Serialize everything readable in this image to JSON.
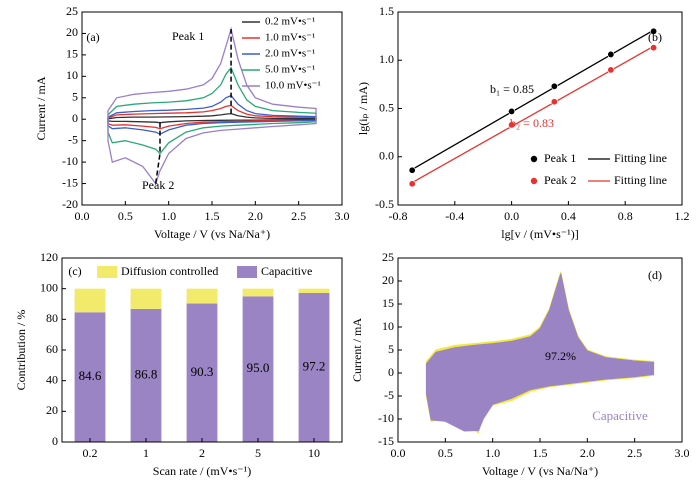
{
  "chart_data": [
    {
      "type": "line",
      "panel": "(a)",
      "x_label": "Voltage / V (vs Na/Na⁺)",
      "y_label": "Current / mA",
      "annotations": [
        {
          "text": "Peak 1"
        },
        {
          "text": "Peak 2"
        }
      ],
      "x": [
        0.3,
        0.4,
        0.6,
        0.8,
        1.0,
        1.2,
        1.4,
        1.5,
        1.6,
        1.66,
        1.72,
        1.8,
        1.9,
        2.0,
        2.2,
        2.5,
        2.7,
        2.7,
        2.5,
        2.2,
        2.0,
        1.8,
        1.6,
        1.4,
        1.2,
        1.0,
        0.9,
        0.85,
        0.7,
        0.5,
        0.35,
        0.3,
        0.3
      ],
      "series": [
        {
          "name": "0.2 mV•s⁻¹",
          "color": "#333333",
          "values": [
            0.1,
            0.4,
            0.5,
            0.5,
            0.55,
            0.6,
            0.7,
            0.8,
            1,
            1.2,
            1.3,
            0.8,
            0.5,
            0.3,
            0.2,
            0.2,
            0.2,
            -0.1,
            -0.1,
            -0.15,
            -0.2,
            -0.2,
            -0.25,
            -0.3,
            -0.4,
            -0.6,
            -0.8,
            -0.7,
            -0.6,
            -0.5,
            -0.5,
            -0.4,
            0.1
          ]
        },
        {
          "name": "1.0 mV•s⁻¹",
          "color": "#e8322f",
          "values": [
            0.3,
            1,
            1.2,
            1.3,
            1.4,
            1.5,
            1.7,
            2,
            2.5,
            3,
            3.2,
            2,
            1.2,
            0.8,
            0.6,
            0.5,
            0.4,
            -0.2,
            -0.3,
            -0.35,
            -0.4,
            -0.5,
            -0.6,
            -0.7,
            -1,
            -1.6,
            -2.2,
            -1.9,
            -1.6,
            -1.3,
            -1.4,
            -1,
            0.3
          ]
        },
        {
          "name": "2.0 mV•s⁻¹",
          "color": "#3a5fcd",
          "values": [
            0.5,
            1.5,
            1.8,
            2,
            2.1,
            2.3,
            2.6,
            3,
            4,
            5,
            5.5,
            3.5,
            2,
            1.3,
            0.9,
            0.7,
            0.6,
            -0.3,
            -0.4,
            -0.5,
            -0.6,
            -0.7,
            -0.8,
            -1,
            -1.4,
            -2.5,
            -3.5,
            -3,
            -2.5,
            -2,
            -2.2,
            -1.5,
            0.5
          ]
        },
        {
          "name": "5.0 mV•s⁻¹",
          "color": "#2aa876",
          "values": [
            1,
            3,
            3.5,
            3.8,
            4,
            4.3,
            5,
            6,
            8,
            10.5,
            12,
            8,
            4.5,
            3,
            2,
            1.6,
            1.4,
            -0.6,
            -0.8,
            -1,
            -1.2,
            -1.4,
            -1.6,
            -2,
            -3,
            -5.5,
            -8,
            -7,
            -6,
            -5,
            -5.5,
            -3,
            1
          ]
        },
        {
          "name": "10.0 mV•s⁻¹",
          "color": "#9b7fc7",
          "values": [
            2,
            5,
            5.8,
            6.2,
            6.5,
            7,
            8,
            9.5,
            13,
            17,
            21,
            14,
            8,
            5,
            3.5,
            2.8,
            2.5,
            -1,
            -1.3,
            -1.7,
            -2,
            -2.3,
            -2.6,
            -3.2,
            -4.5,
            -8,
            -12,
            -15,
            -11,
            -9,
            -10,
            -5,
            2
          ]
        }
      ],
      "xlim": [
        0,
        3.0
      ],
      "xticks": [
        {
          "value": 0,
          "label": "0.0"
        },
        0.5,
        {
          "value": 1,
          "label": "1.0"
        },
        1.5,
        {
          "value": 2,
          "label": "2.0"
        },
        2.5,
        {
          "value": 3,
          "label": "3.0"
        }
      ],
      "ylim": [
        -20,
        25
      ],
      "yticks": [
        -20,
        -15,
        -10,
        -5,
        0,
        5,
        10,
        15,
        20,
        25
      ],
      "legend": "upper right"
    },
    {
      "type": "scatter",
      "panel": "(b)",
      "x_label": "lg[v / (mV•s⁻¹)]",
      "y_label": "lg(iₚ / mA)",
      "fit_label": "Fitting line",
      "annotations": [
        {
          "text": "b₁ = 0.85",
          "color": "#000000"
        },
        {
          "text": "b₂ = 0.83",
          "color": "#e8322f"
        }
      ],
      "x": [
        -0.7,
        0,
        0.301,
        0.699,
        1
      ],
      "series": [
        {
          "name": "Peak 1",
          "color": "#000000",
          "values": [
            -0.14,
            0.47,
            0.73,
            1.06,
            1.3
          ]
        },
        {
          "name": "Peak 2",
          "color": "#e8322f",
          "values": [
            -0.28,
            0.33,
            0.57,
            0.9,
            1.13
          ]
        }
      ],
      "xlim": [
        -0.8,
        1.2
      ],
      "xticks": [
        -0.8,
        -0.4,
        {
          "value": 0,
          "label": "0.0"
        },
        0.4,
        0.8,
        1.2
      ],
      "ylim": [
        -0.5,
        1.5
      ],
      "yticks": [
        -0.5,
        {
          "value": 0,
          "label": "0.0"
        },
        0.5,
        {
          "value": 1,
          "label": "1.0"
        },
        1.5
      ],
      "legend": "lower right"
    },
    {
      "type": "bar",
      "panel": "(c)",
      "x_label": "Scan rate / (mV•s⁻¹)",
      "y_label": "Contribution / %",
      "categories": [
        "0.2",
        "1",
        "2",
        "5",
        "10"
      ],
      "series": [
        {
          "name": "Capacitive",
          "color": "#9b84c4",
          "values": [
            84.6,
            86.8,
            90.3,
            95.0,
            97.2
          ],
          "value_labels": [
            "84.6",
            "86.8",
            "90.3",
            "95.0",
            "97.2"
          ]
        },
        {
          "name": "Diffusion controlled",
          "color": "#f2ea6a",
          "values": [
            15.4,
            13.2,
            9.7,
            5.0,
            2.8
          ]
        }
      ],
      "ylim": [
        0,
        120
      ],
      "yticks": [
        0,
        20,
        40,
        60,
        80,
        100,
        120
      ],
      "stacked": true,
      "legend": "top"
    },
    {
      "type": "area",
      "panel": "(d)",
      "x_label": "Voltage / V (vs Na/Na⁺)",
      "y_label": "Current / mA",
      "annotations": [
        {
          "text": "97.2%"
        }
      ],
      "x": [
        0.3,
        0.4,
        0.6,
        0.8,
        1.0,
        1.2,
        1.4,
        1.5,
        1.6,
        1.66,
        1.72,
        1.8,
        1.9,
        2.0,
        2.2,
        2.5,
        2.7,
        2.7,
        2.5,
        2.2,
        2.0,
        1.8,
        1.6,
        1.4,
        1.2,
        1.0,
        0.9,
        0.85,
        0.7,
        0.5,
        0.35,
        0.3,
        0.3
      ],
      "series": [
        {
          "color": "#f2ea3a",
          "values": [
            2.5,
            5,
            6,
            6.4,
            6.8,
            7.3,
            8.3,
            10,
            14,
            18,
            22,
            14,
            8,
            5,
            3.5,
            2.8,
            2.5,
            -0.5,
            -1,
            -1.5,
            -2,
            -2.5,
            -3,
            -4,
            -6,
            -7,
            -9,
            -13,
            -11,
            -10,
            -10.5,
            -5,
            2.5
          ]
        },
        {
          "name": "Capacitive",
          "color": "#9b84c4",
          "values": [
            2,
            4.5,
            5.5,
            6,
            6.4,
            6.9,
            7.9,
            9.6,
            13.6,
            17.6,
            21.6,
            13.6,
            7.7,
            4.8,
            3.3,
            2.6,
            2.3,
            -0.3,
            -0.8,
            -1.3,
            -1.8,
            -2.3,
            -2.8,
            -3.6,
            -5.5,
            -6.8,
            -10,
            -12.5,
            -12.6,
            -10.5,
            -10.2,
            -4.5,
            2
          ]
        }
      ],
      "xlim": [
        0,
        3.0
      ],
      "xticks": [
        {
          "value": 0,
          "label": "0.0"
        },
        0.5,
        {
          "value": 1,
          "label": "1.0"
        },
        1.5,
        {
          "value": 2,
          "label": "2.0"
        },
        2.5,
        {
          "value": 3,
          "label": "3.0"
        }
      ],
      "ylim": [
        -15,
        25
      ],
      "yticks": [
        -15,
        -10,
        -5,
        0,
        5,
        10,
        15,
        20,
        25
      ]
    }
  ]
}
